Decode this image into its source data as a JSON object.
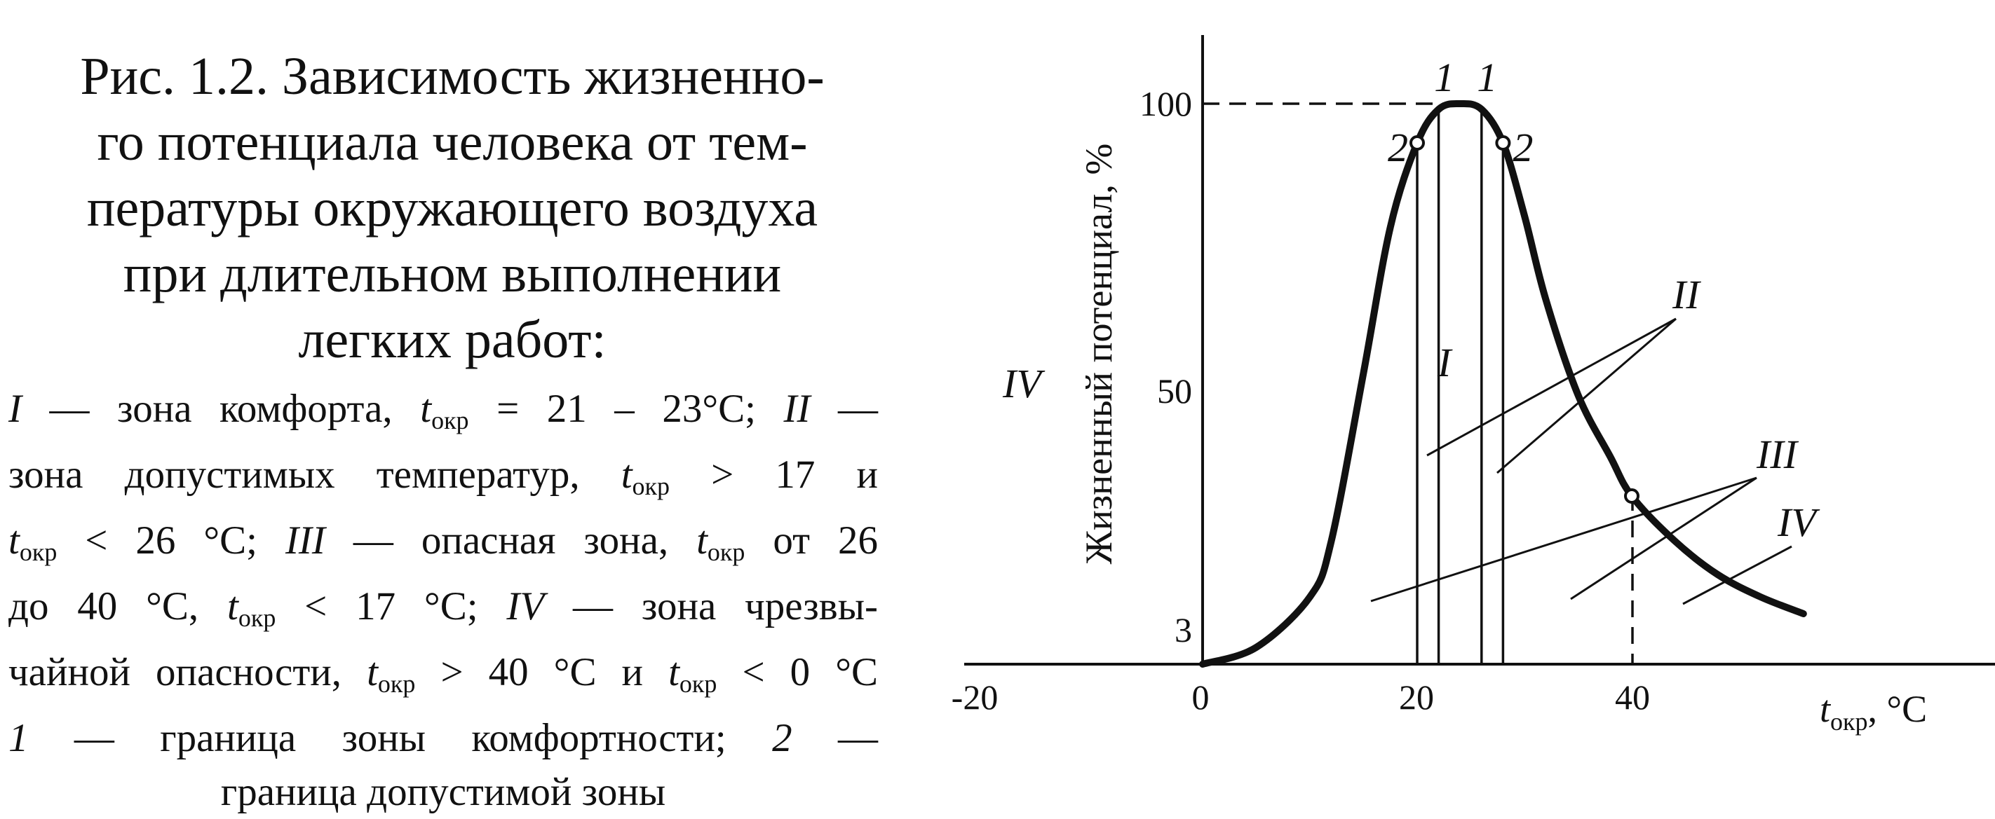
{
  "caption": {
    "title_lines": [
      "Рис. 1.2. Зависимость жизненно-",
      "го потенциала человека от тем-",
      "пературы окружающего воздуха",
      "при длительном выполнении",
      "легких работ:"
    ],
    "legend": {
      "l1": {
        "z1": "I",
        "a": " — зона комфорта, ",
        "t": "t",
        "s": "окр",
        "b": " = 21 – 23°C; ",
        "z2": "II",
        "c": " —"
      },
      "l2": {
        "a": "зона допустимых температур, ",
        "t": "t",
        "s": "окр",
        "b": " > 17 и"
      },
      "l3": {
        "t1": "t",
        "s1": "окр",
        "a": " < 26 °C; ",
        "z": "III",
        "b": " — опасная зона, ",
        "t2": "t",
        "s2": "окр",
        "c": " от 26"
      },
      "l4": {
        "a": "до 40 °C, ",
        "t": "t",
        "s": "окр",
        "b": " < 17 °C; ",
        "z": "IV",
        "c": " — зона чрезвы-"
      },
      "l5": {
        "a": "чайной опасности, ",
        "t1": "t",
        "s1": "окр",
        "b": " > 40 °C и ",
        "t2": "t",
        "s2": "окр",
        "c": " < 0 °C"
      },
      "l6": {
        "n1": "1",
        "a": " — граница зоны комфортности; ",
        "n2": "2",
        "b": " —"
      },
      "l7": {
        "a": "граница допустимой зоны"
      }
    }
  },
  "figure": {
    "y_axis_label": "Жизненный потенциал, %",
    "x_axis_label": {
      "t": "t",
      "sub": "окр",
      "unit": ", °C"
    },
    "x_ticks": [
      "-20",
      "0",
      "20",
      "40"
    ],
    "y_ticks": [
      "100",
      "50",
      "3"
    ],
    "curve": [
      [
        0,
        0
      ],
      [
        5,
        3
      ],
      [
        10,
        12
      ],
      [
        12,
        22
      ],
      [
        15,
        52
      ],
      [
        17.5,
        78
      ],
      [
        20,
        93
      ],
      [
        22,
        99
      ],
      [
        24,
        100
      ],
      [
        26,
        99
      ],
      [
        28,
        93
      ],
      [
        30,
        80
      ],
      [
        32,
        65
      ],
      [
        35,
        48
      ],
      [
        38,
        37
      ],
      [
        40,
        30
      ],
      [
        44,
        22
      ],
      [
        48,
        16
      ],
      [
        52,
        12
      ],
      [
        56,
        9
      ]
    ],
    "zone_lines": [
      {
        "x": 20,
        "label": "2"
      },
      {
        "x": 22,
        "label": "1"
      },
      {
        "x": 26,
        "label": "1"
      },
      {
        "x": 28,
        "label": "2"
      }
    ],
    "boundary_markers": [
      [
        20,
        93
      ],
      [
        28,
        93
      ],
      [
        40,
        30
      ]
    ],
    "zone_labels": {
      "IV_left": "IV",
      "I": "I",
      "II": "II",
      "III": "III",
      "IV_right": "IV"
    },
    "colors": {
      "ink": "#111111",
      "paper": "#ffffff"
    }
  }
}
